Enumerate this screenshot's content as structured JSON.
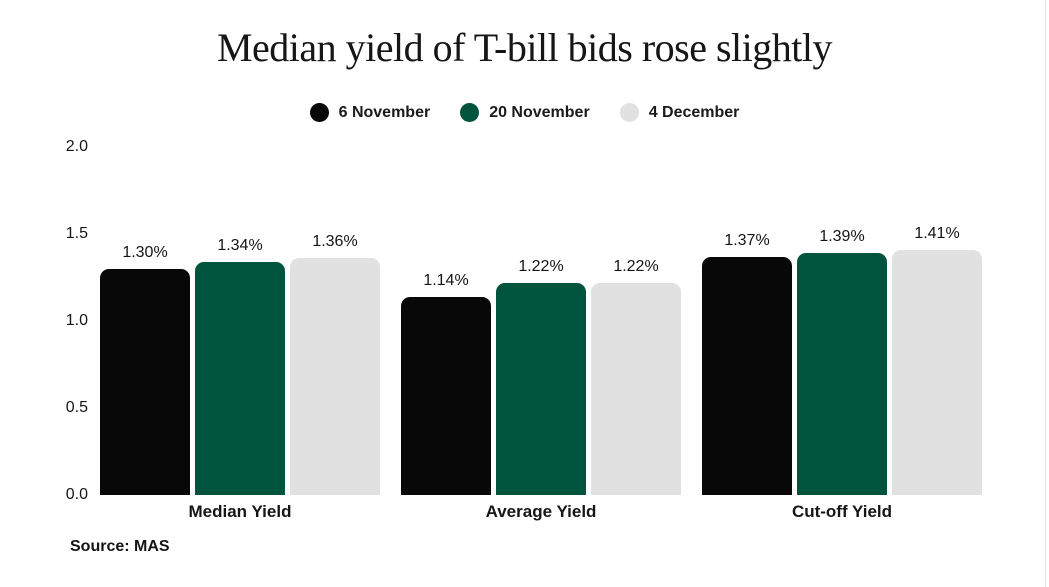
{
  "chart_data": {
    "type": "bar",
    "title": "Median yield of T-bill bids rose slightly",
    "categories": [
      "Median Yield",
      "Average Yield",
      "Cut-off Yield"
    ],
    "series": [
      {
        "name": "6 November",
        "color": "#080808",
        "values": [
          1.3,
          1.14,
          1.37
        ],
        "labels": [
          "1.30%",
          "1.14%",
          "1.37%"
        ]
      },
      {
        "name": "20 November",
        "color": "#00543d",
        "values": [
          1.34,
          1.22,
          1.39
        ],
        "labels": [
          "1.34%",
          "1.22%",
          "1.39%"
        ]
      },
      {
        "name": "4 December",
        "color": "#e1e1e1",
        "values": [
          1.36,
          1.22,
          1.41
        ],
        "labels": [
          "1.36%",
          "1.22%",
          "1.41%"
        ]
      }
    ],
    "xlabel": "",
    "ylabel": "",
    "ylim": [
      0,
      2
    ],
    "yticks": [
      "0.0",
      "0.5",
      "1.0",
      "1.5",
      "2.0"
    ],
    "grid": false,
    "legend_position": "top",
    "source": "Source: MAS"
  }
}
